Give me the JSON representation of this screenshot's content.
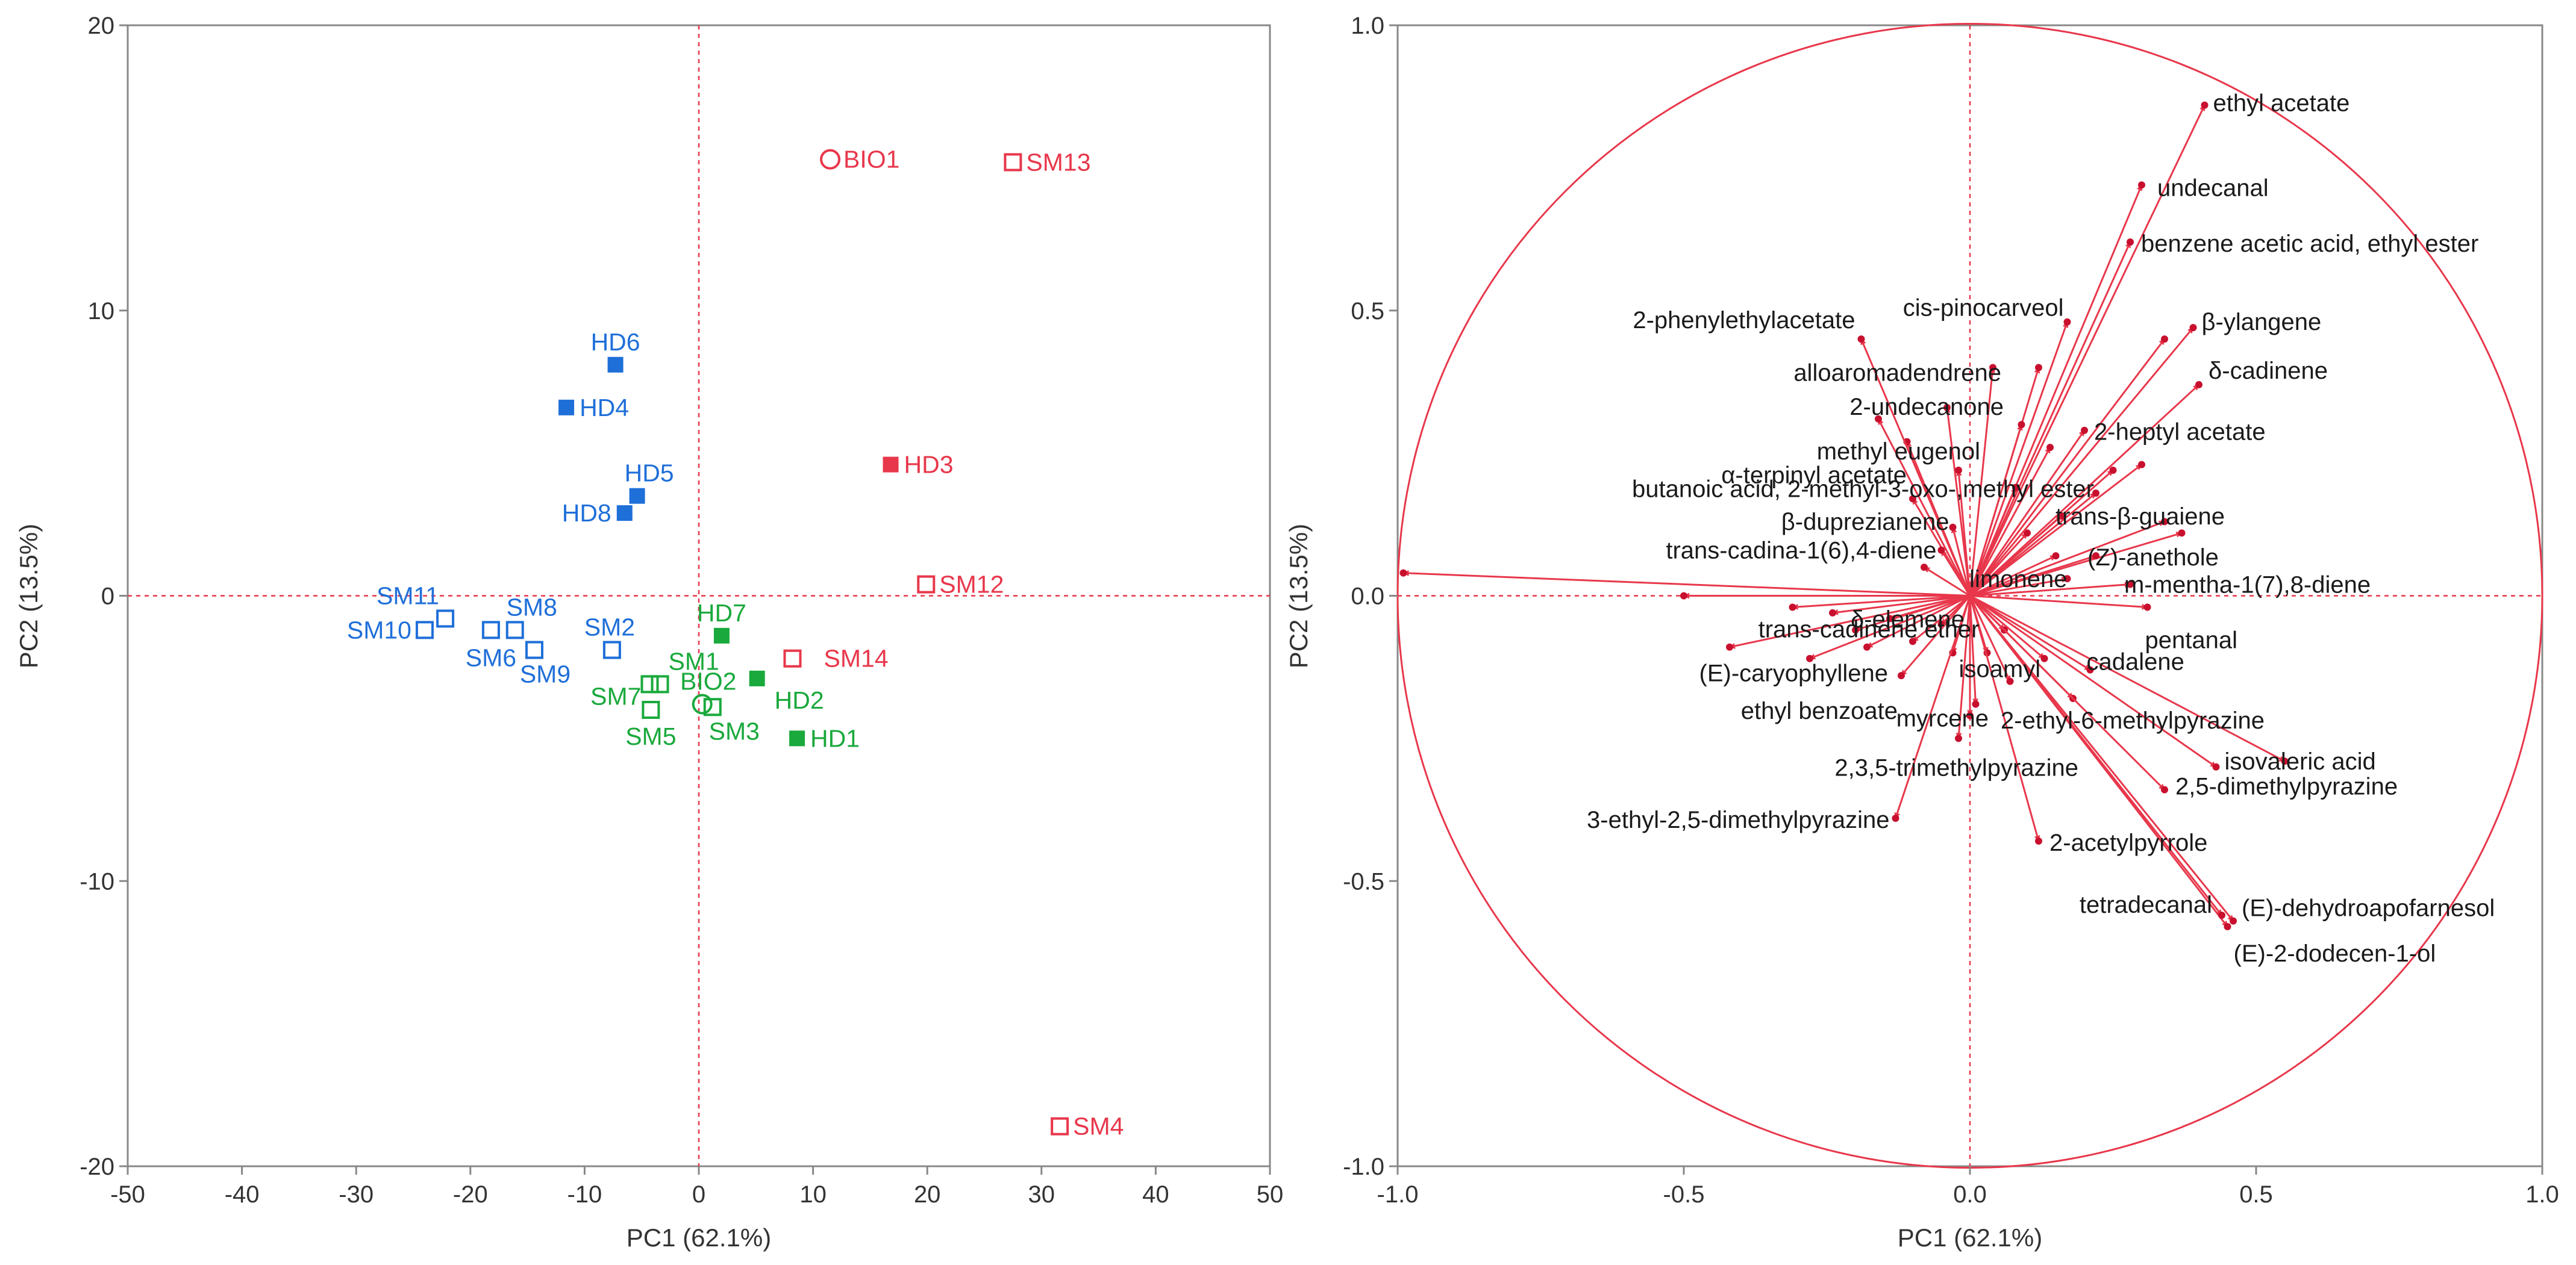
{
  "colors": {
    "red": "#e8374b",
    "blue": "#1f6fd9",
    "green": "#1aa93c",
    "frame": "#888888",
    "guide": "#e8374b"
  },
  "chart_data": [
    {
      "type": "scatter",
      "title": "",
      "xlabel": "PC1 (62.1%)",
      "ylabel": "PC2 (13.5%)",
      "xlim": [
        -50,
        50
      ],
      "ylim": [
        -20,
        20
      ],
      "xticks": [
        -50,
        -40,
        -30,
        -20,
        -10,
        0,
        10,
        20,
        30,
        40,
        50
      ],
      "yticks": [
        -20,
        -10,
        0,
        10,
        20
      ],
      "points": [
        {
          "label": "BIO1",
          "x": 11.5,
          "y": 15.3,
          "color": "red",
          "marker": "circle-open"
        },
        {
          "label": "SM13",
          "x": 27.5,
          "y": 15.2,
          "color": "red",
          "marker": "square-open"
        },
        {
          "label": "HD3",
          "x": 16.8,
          "y": 4.6,
          "color": "red",
          "marker": "square"
        },
        {
          "label": "SM12",
          "x": 19.9,
          "y": 0.4,
          "color": "red",
          "marker": "square-open"
        },
        {
          "label": "SM14",
          "x": 8.2,
          "y": -2.2,
          "color": "red",
          "marker": "square-open"
        },
        {
          "label": "SM4",
          "x": 31.6,
          "y": -18.6,
          "color": "red",
          "marker": "square-open"
        },
        {
          "label": "HD6",
          "x": -7.3,
          "y": 8.1,
          "color": "blue",
          "marker": "square"
        },
        {
          "label": "HD4",
          "x": -11.6,
          "y": 6.6,
          "color": "blue",
          "marker": "square"
        },
        {
          "label": "HD5",
          "x": -5.4,
          "y": 3.5,
          "color": "blue",
          "marker": "square"
        },
        {
          "label": "HD8",
          "x": -6.5,
          "y": 2.9,
          "color": "blue",
          "marker": "square"
        },
        {
          "label": "SM11",
          "x": -22.2,
          "y": -0.8,
          "color": "blue",
          "marker": "square-open"
        },
        {
          "label": "SM10",
          "x": -24.0,
          "y": -1.2,
          "color": "blue",
          "marker": "square-open"
        },
        {
          "label": "SM8",
          "x": -16.1,
          "y": -1.2,
          "color": "blue",
          "marker": "square-open"
        },
        {
          "label": "SM6",
          "x": -18.2,
          "y": -1.2,
          "color": "blue",
          "marker": "square-open"
        },
        {
          "label": "SM9",
          "x": -14.4,
          "y": -1.9,
          "color": "blue",
          "marker": "square-open"
        },
        {
          "label": "SM2",
          "x": -7.6,
          "y": -1.9,
          "color": "blue",
          "marker": "square-open"
        },
        {
          "label": "HD7",
          "x": 2.0,
          "y": -1.4,
          "color": "green",
          "marker": "square"
        },
        {
          "label": "SM1",
          "x": -3.4,
          "y": -3.1,
          "color": "green",
          "marker": "square-open"
        },
        {
          "label": "SM7",
          "x": -4.3,
          "y": -3.1,
          "color": "green",
          "marker": "square-open"
        },
        {
          "label": "HD2",
          "x": 5.1,
          "y": -2.9,
          "color": "green",
          "marker": "square"
        },
        {
          "label": "BIO2",
          "x": 0.3,
          "y": -3.8,
          "color": "green",
          "marker": "circle-open"
        },
        {
          "label": "SM3",
          "x": 1.2,
          "y": -3.9,
          "color": "green",
          "marker": "square-open"
        },
        {
          "label": "SM5",
          "x": -4.2,
          "y": -4.0,
          "color": "green",
          "marker": "square-open"
        },
        {
          "label": "HD1",
          "x": 8.6,
          "y": -5.0,
          "color": "green",
          "marker": "square"
        }
      ]
    },
    {
      "type": "scatter",
      "title": "",
      "xlabel": "PC1 (62.1%)",
      "ylabel": "PC2 (13.5%)",
      "xlim": [
        -1.0,
        1.0
      ],
      "ylim": [
        -1.0,
        1.0
      ],
      "xticks": [
        -1.0,
        -0.5,
        0.0,
        0.5,
        1.0
      ],
      "yticks": [
        -1.0,
        -0.5,
        0.0,
        0.5,
        1.0
      ],
      "xtick_labels": [
        "-1.0",
        "-0.5",
        "0.0",
        "0.5",
        "1.0"
      ],
      "ytick_labels": [
        "-1.0",
        "-0.5",
        "0.0",
        "0.5",
        "1.0"
      ],
      "unit_circle": true,
      "vectors": [
        {
          "label": "ethyl acetate",
          "x": 0.41,
          "y": 0.86
        },
        {
          "label": "undecanal",
          "x": 0.3,
          "y": 0.72
        },
        {
          "label": "benzene acetic acid, ethyl ester",
          "x": 0.28,
          "y": 0.62
        },
        {
          "label": "β-ylangene",
          "x": 0.39,
          "y": 0.47
        },
        {
          "label": "δ-cadinene",
          "x": 0.4,
          "y": 0.37
        },
        {
          "label": "cis-pinocarveol",
          "x": 0.17,
          "y": 0.48
        },
        {
          "label": "2-phenylethylacetate",
          "x": -0.19,
          "y": 0.45
        },
        {
          "label": "alloaromadendrene",
          "x": 0.04,
          "y": 0.4
        },
        {
          "label": "2-undecanone",
          "x": -0.04,
          "y": 0.33
        },
        {
          "label": "2-heptyl acetate",
          "x": 0.2,
          "y": 0.29
        },
        {
          "label": "methyl eugenol",
          "x": -0.02,
          "y": 0.22
        },
        {
          "label": "α-terpinyl acetate",
          "x": -0.1,
          "y": 0.17
        },
        {
          "label": "butanoic acid, 2-methyl-3-oxo-,methyl ester",
          "x": 0.08,
          "y": 0.19
        },
        {
          "label": "trans-β-guaiene",
          "x": 0.16,
          "y": 0.14
        },
        {
          "label": "β-duprezianene",
          "x": -0.03,
          "y": 0.12
        },
        {
          "label": "trans-cadina-1(6),4-diene",
          "x": -0.05,
          "y": 0.08
        },
        {
          "label": "(Z)-anethole",
          "x": 0.22,
          "y": 0.07
        },
        {
          "label": "limonene",
          "x": 0.17,
          "y": 0.03
        },
        {
          "label": "m-mentha-1(7),8-diene",
          "x": 0.28,
          "y": 0.02
        },
        {
          "label": "pentanal",
          "x": 0.31,
          "y": -0.02
        },
        {
          "label": "trans-cadinene ether",
          "x": -0.31,
          "y": -0.02
        },
        {
          "label": "δ-elemene",
          "x": -0.24,
          "y": -0.03
        },
        {
          "label": "(E)-caryophyllene",
          "x": -0.28,
          "y": -0.11
        },
        {
          "label": "ethyl benzoate",
          "x": -0.12,
          "y": -0.14
        },
        {
          "label": "isoamyl",
          "x": -0.03,
          "y": -0.1
        },
        {
          "label": "cadalene",
          "x": 0.21,
          "y": -0.13
        },
        {
          "label": "2-ethyl-6-methylpyrazine",
          "x": 0.18,
          "y": -0.18
        },
        {
          "label": "myrcene",
          "x": -0.02,
          "y": -0.25
        },
        {
          "label": "2,3,5-trimethylpyrazine",
          "x": 0.0,
          "y": -0.21
        },
        {
          "label": "isovaleric acid",
          "x": 0.43,
          "y": -0.3
        },
        {
          "label": "2,5-dimethylpyrazine",
          "x": 0.34,
          "y": -0.34
        },
        {
          "label": "3-ethyl-2,5-dimethylpyrazine",
          "x": -0.13,
          "y": -0.39
        },
        {
          "label": "2-acetylpyrrole",
          "x": 0.12,
          "y": -0.43
        },
        {
          "label": "(E)-dehydroapofarnesol",
          "x": 0.46,
          "y": -0.57
        },
        {
          "label": "(E)-2-dodecen-1-ol",
          "x": 0.45,
          "y": -0.58
        },
        {
          "label": "tetradecanal",
          "x": 0.44,
          "y": -0.56
        }
      ],
      "unlabeled_vectors": [
        {
          "x": -0.99,
          "y": 0.04
        },
        {
          "x": -0.5,
          "y": 0.0
        },
        {
          "x": 0.34,
          "y": 0.13
        },
        {
          "x": 0.37,
          "y": 0.11
        },
        {
          "x": 0.3,
          "y": 0.23
        },
        {
          "x": 0.34,
          "y": 0.45
        },
        {
          "x": 0.12,
          "y": 0.4
        },
        {
          "x": 0.25,
          "y": 0.22
        },
        {
          "x": 0.14,
          "y": 0.26
        },
        {
          "x": 0.22,
          "y": 0.18
        },
        {
          "x": -0.11,
          "y": 0.27
        },
        {
          "x": -0.16,
          "y": 0.31
        },
        {
          "x": 0.09,
          "y": 0.3
        },
        {
          "x": 0.1,
          "y": 0.11
        },
        {
          "x": 0.15,
          "y": 0.07
        },
        {
          "x": -0.08,
          "y": 0.05
        },
        {
          "x": -0.2,
          "y": -0.06
        },
        {
          "x": -0.18,
          "y": -0.09
        },
        {
          "x": -0.1,
          "y": -0.08
        },
        {
          "x": -0.42,
          "y": -0.09
        },
        {
          "x": -0.05,
          "y": -0.05
        },
        {
          "x": 0.01,
          "y": -0.19
        },
        {
          "x": -0.14,
          "y": -0.04
        },
        {
          "x": 0.07,
          "y": -0.15
        },
        {
          "x": 0.13,
          "y": -0.11
        },
        {
          "x": 0.55,
          "y": -0.29
        },
        {
          "x": 0.03,
          "y": -0.1
        },
        {
          "x": 0.06,
          "y": -0.06
        }
      ]
    }
  ]
}
